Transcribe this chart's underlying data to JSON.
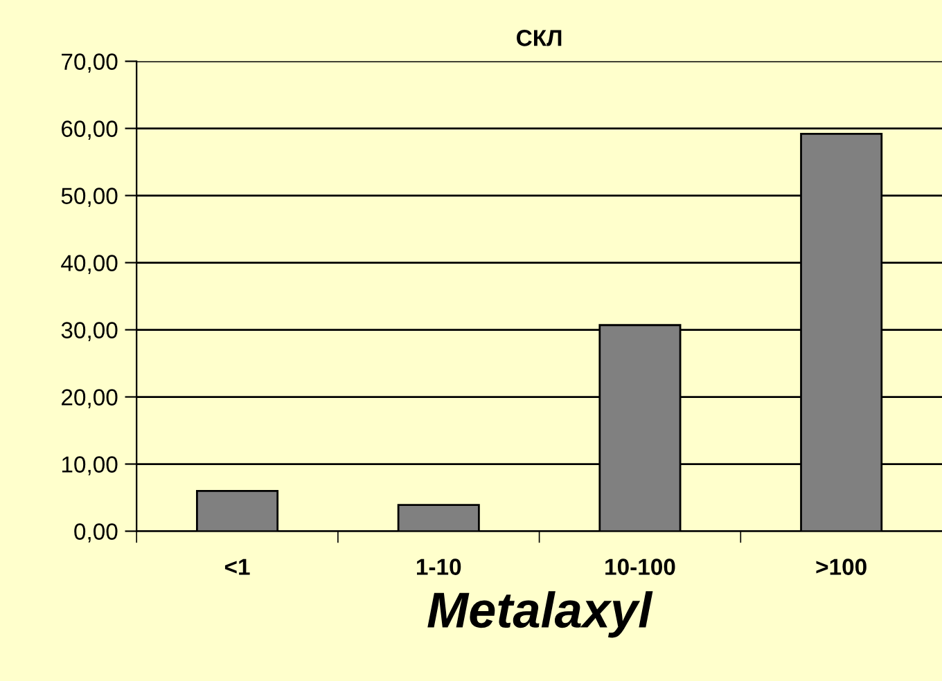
{
  "chart_data": {
    "type": "bar",
    "title": "СКЛ",
    "xlabel": "Metalaxyl",
    "categories": [
      "<1",
      "1-10",
      "10-100",
      ">100"
    ],
    "values": [
      6.0,
      3.9,
      30.7,
      59.2
    ],
    "color": "#808080",
    "ylim": [
      0,
      70
    ],
    "yticks": [
      {
        "value": 0,
        "label": "0,00"
      },
      {
        "value": 10,
        "label": "10,00"
      },
      {
        "value": 20,
        "label": "20,00"
      },
      {
        "value": 30,
        "label": "30,00"
      },
      {
        "value": 40,
        "label": "40,00"
      },
      {
        "value": 50,
        "label": "50,00"
      },
      {
        "value": 60,
        "label": "60,00"
      },
      {
        "value": 70,
        "label": "70,00"
      }
    ],
    "grid": "y"
  }
}
